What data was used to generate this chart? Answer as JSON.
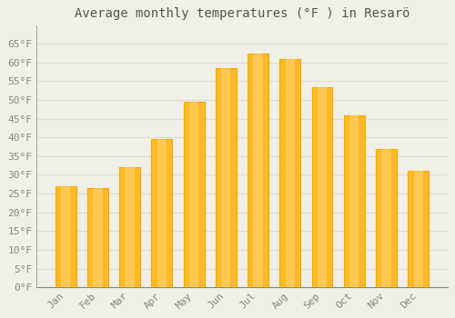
{
  "title": "Average monthly temperatures (°F ) in Resarö",
  "months": [
    "Jan",
    "Feb",
    "Mar",
    "Apr",
    "May",
    "Jun",
    "Jul",
    "Aug",
    "Sep",
    "Oct",
    "Nov",
    "Dec"
  ],
  "values": [
    27,
    26.5,
    32,
    39.5,
    49.5,
    58.5,
    62.5,
    61,
    53.5,
    46,
    37,
    31
  ],
  "bar_color_main": "#FDB927",
  "bar_color_edge": "#F5A800",
  "bar_color_highlight": "#FFDA7A",
  "background_color": "#F0EFE8",
  "plot_bg_color": "#F0EFE8",
  "grid_color": "#DCDBD4",
  "text_color": "#888880",
  "title_color": "#555550",
  "ylim": [
    0,
    70
  ],
  "yticks": [
    0,
    5,
    10,
    15,
    20,
    25,
    30,
    35,
    40,
    45,
    50,
    55,
    60,
    65
  ],
  "title_fontsize": 10,
  "tick_fontsize": 8,
  "bar_width": 0.65
}
